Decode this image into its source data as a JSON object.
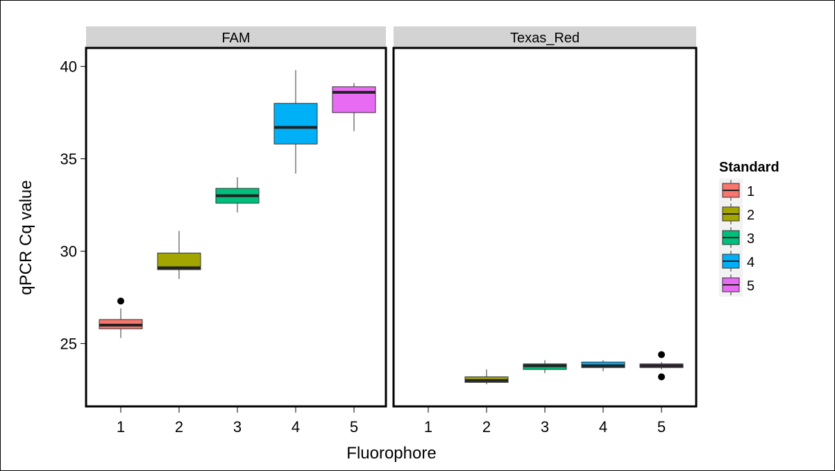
{
  "chart_data": {
    "type": "boxplot",
    "facets": [
      "FAM",
      "Texas_Red"
    ],
    "categories": [
      "1",
      "2",
      "3",
      "4",
      "5"
    ],
    "xlabel": "Fluorophore",
    "ylabel": "qPCR Cq value",
    "ylim": [
      21.6,
      41.0
    ],
    "yticks": [
      25,
      30,
      35,
      40
    ],
    "grid": false,
    "legend": {
      "title": "Standard",
      "position": "right",
      "entries": [
        {
          "label": "1",
          "color": "#F8766D"
        },
        {
          "label": "2",
          "color": "#A3A500"
        },
        {
          "label": "3",
          "color": "#00BF7D"
        },
        {
          "label": "4",
          "color": "#00B0F6"
        },
        {
          "label": "5",
          "color": "#E76BF3"
        }
      ]
    },
    "boxes": [
      {
        "facet": "FAM",
        "x": "1",
        "whisker_low": 25.3,
        "q1": 25.8,
        "median": 26.0,
        "q3": 26.3,
        "whisker_high": 26.9,
        "outliers": [
          27.3
        ]
      },
      {
        "facet": "FAM",
        "x": "2",
        "whisker_low": 28.5,
        "q1": 29.0,
        "median": 29.1,
        "q3": 29.9,
        "whisker_high": 31.1,
        "outliers": []
      },
      {
        "facet": "FAM",
        "x": "3",
        "whisker_low": 32.1,
        "q1": 32.6,
        "median": 33.0,
        "q3": 33.4,
        "whisker_high": 34.0,
        "outliers": []
      },
      {
        "facet": "FAM",
        "x": "4",
        "whisker_low": 34.2,
        "q1": 35.8,
        "median": 36.7,
        "q3": 38.0,
        "whisker_high": 39.8,
        "outliers": []
      },
      {
        "facet": "FAM",
        "x": "5",
        "whisker_low": 36.5,
        "q1": 37.5,
        "median": 38.6,
        "q3": 38.9,
        "whisker_high": 39.1,
        "outliers": []
      },
      {
        "facet": "Texas_Red",
        "x": "2",
        "whisker_low": 22.8,
        "q1": 22.9,
        "median": 23.0,
        "q3": 23.2,
        "whisker_high": 23.6,
        "outliers": []
      },
      {
        "facet": "Texas_Red",
        "x": "3",
        "whisker_low": 23.4,
        "q1": 23.6,
        "median": 23.8,
        "q3": 23.9,
        "whisker_high": 24.1,
        "outliers": []
      },
      {
        "facet": "Texas_Red",
        "x": "4",
        "whisker_low": 23.5,
        "q1": 23.7,
        "median": 23.8,
        "q3": 24.0,
        "whisker_high": 24.1,
        "outliers": []
      },
      {
        "facet": "Texas_Red",
        "x": "5",
        "whisker_low": 23.6,
        "q1": 23.7,
        "median": 23.8,
        "q3": 23.9,
        "whisker_high": 24.0,
        "outliers": [
          24.4,
          23.2
        ]
      }
    ]
  }
}
